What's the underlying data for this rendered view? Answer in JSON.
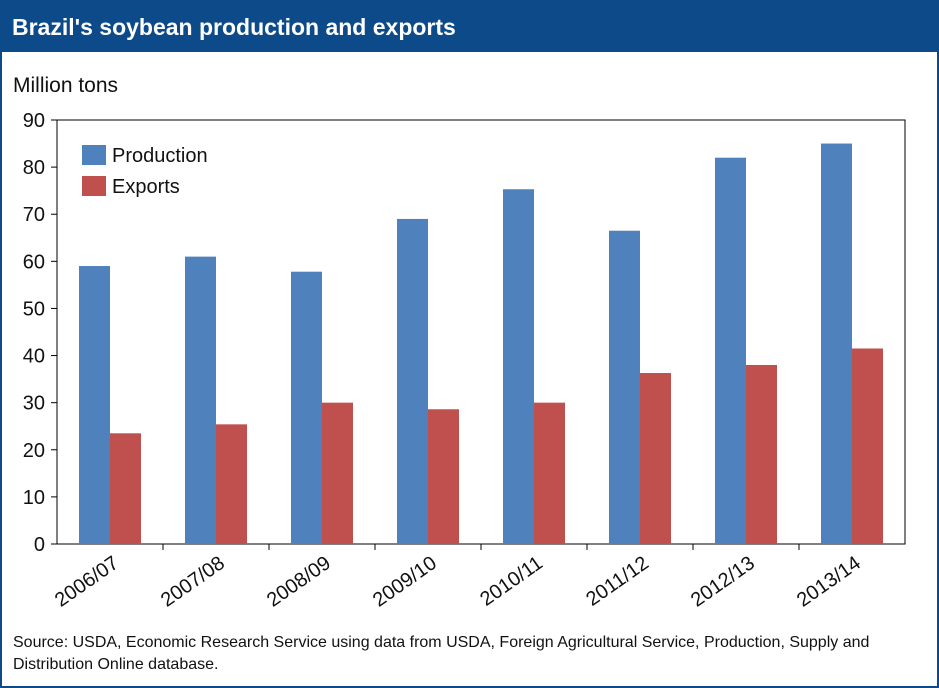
{
  "title": "Brazil's soybean production and exports",
  "source": "Source: USDA, Economic Research Service using data from USDA, Foreign Agricultural Service, Production, Supply and Distribution Online database.",
  "colors": {
    "header_bg": "#0c4a8a",
    "production": "#4f81bd",
    "exports": "#c0504d"
  },
  "chart_data": {
    "type": "bar",
    "ylabel": "Million tons",
    "xlabel": "",
    "ylim": [
      0,
      90
    ],
    "yticks": [
      0,
      10,
      20,
      30,
      40,
      50,
      60,
      70,
      80,
      90
    ],
    "grid": false,
    "legend_position": "top-left",
    "categories": [
      "2006/07",
      "2007/08",
      "2008/09",
      "2009/10",
      "2010/11",
      "2011/12",
      "2012/13",
      "2013/14"
    ],
    "series": [
      {
        "name": "Production",
        "values": [
          59.0,
          61.0,
          57.8,
          69.0,
          75.3,
          66.5,
          82.0,
          85.0
        ]
      },
      {
        "name": "Exports",
        "values": [
          23.5,
          25.4,
          30.0,
          28.6,
          30.0,
          36.3,
          38.0,
          41.5
        ]
      }
    ]
  }
}
